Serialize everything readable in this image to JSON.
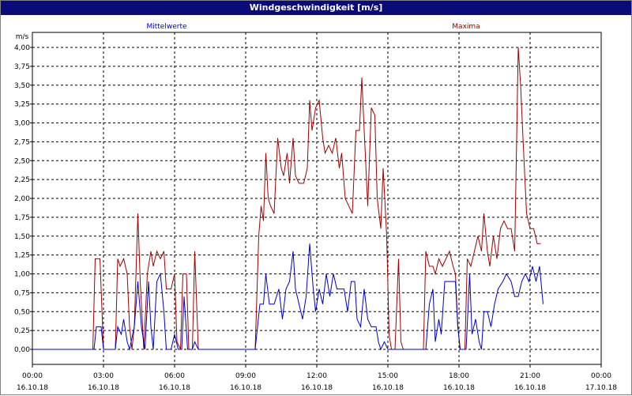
{
  "window": {
    "title": "Windgeschwindigkeit [m/s]"
  },
  "chart_data": {
    "type": "line",
    "title": "Windgeschwindigkeit [m/s]",
    "ylabel": "m/s",
    "ylim": [
      0,
      4.0
    ],
    "grid": true,
    "yticks": [
      "0,00",
      "0,25",
      "0,50",
      "0,75",
      "1,00",
      "1,25",
      "1,50",
      "1,75",
      "2,00",
      "2,25",
      "2,50",
      "2,75",
      "3,00",
      "3,25",
      "3,50",
      "3,75",
      "4,00"
    ],
    "xticks": [
      {
        "time": "00:00",
        "date": "16.10.18"
      },
      {
        "time": "03:00",
        "date": "16.10.18"
      },
      {
        "time": "06:00",
        "date": "16.10.18"
      },
      {
        "time": "09:00",
        "date": "16.10.18"
      },
      {
        "time": "12:00",
        "date": "16.10.18"
      },
      {
        "time": "15:00",
        "date": "16.10.18"
      },
      {
        "time": "18:00",
        "date": "16.10.18"
      },
      {
        "time": "21:00",
        "date": "16.10.18"
      },
      {
        "time": "00:00",
        "date": "17.10.18"
      }
    ],
    "series": [
      {
        "name": "Mittelwerte",
        "color": "#0000c8",
        "points": [
          [
            0,
            0
          ],
          [
            2.6,
            0
          ],
          [
            2.7,
            0.3
          ],
          [
            2.9,
            0.3
          ],
          [
            3.0,
            0
          ],
          [
            3.5,
            0
          ],
          [
            3.6,
            0.3
          ],
          [
            3.75,
            0.2
          ],
          [
            3.85,
            0.4
          ],
          [
            4.0,
            0.1
          ],
          [
            4.1,
            0
          ],
          [
            4.3,
            0.3
          ],
          [
            4.45,
            0.9
          ],
          [
            4.6,
            0.3
          ],
          [
            4.75,
            0
          ],
          [
            4.9,
            0.9
          ],
          [
            5.0,
            0.3
          ],
          [
            5.1,
            0
          ],
          [
            5.25,
            0.9
          ],
          [
            5.4,
            1.0
          ],
          [
            5.55,
            0.5
          ],
          [
            5.65,
            0
          ],
          [
            5.85,
            0
          ],
          [
            6.0,
            0.2
          ],
          [
            6.15,
            0
          ],
          [
            6.3,
            0
          ],
          [
            6.4,
            0.7
          ],
          [
            6.55,
            0
          ],
          [
            6.75,
            0
          ],
          [
            6.85,
            0.1
          ],
          [
            7.0,
            0
          ],
          [
            9.4,
            0
          ],
          [
            9.5,
            0.3
          ],
          [
            9.6,
            0.6
          ],
          [
            9.75,
            0.6
          ],
          [
            9.85,
            1.0
          ],
          [
            10.0,
            0.6
          ],
          [
            10.2,
            0.6
          ],
          [
            10.4,
            0.8
          ],
          [
            10.55,
            0.4
          ],
          [
            10.7,
            0.8
          ],
          [
            10.85,
            0.9
          ],
          [
            11.0,
            1.3
          ],
          [
            11.1,
            0.8
          ],
          [
            11.25,
            0.6
          ],
          [
            11.4,
            0.4
          ],
          [
            11.55,
            0.7
          ],
          [
            11.7,
            1.4
          ],
          [
            11.85,
            0.8
          ],
          [
            11.95,
            0.5
          ],
          [
            12.1,
            0.8
          ],
          [
            12.25,
            0.6
          ],
          [
            12.4,
            1.0
          ],
          [
            12.55,
            0.7
          ],
          [
            12.7,
            1.0
          ],
          [
            12.85,
            0.8
          ],
          [
            13.0,
            0.8
          ],
          [
            13.15,
            0.8
          ],
          [
            13.3,
            0.5
          ],
          [
            13.45,
            0.9
          ],
          [
            13.6,
            0.9
          ],
          [
            13.7,
            0.4
          ],
          [
            13.85,
            0.3
          ],
          [
            14.0,
            0.8
          ],
          [
            14.15,
            0.4
          ],
          [
            14.3,
            0.3
          ],
          [
            14.5,
            0.3
          ],
          [
            14.6,
            0.1
          ],
          [
            14.7,
            0
          ],
          [
            14.85,
            0.1
          ],
          [
            15.0,
            0
          ],
          [
            16.6,
            0
          ],
          [
            16.75,
            0.6
          ],
          [
            16.9,
            0.8
          ],
          [
            17.0,
            0.1
          ],
          [
            17.15,
            0.4
          ],
          [
            17.25,
            0.2
          ],
          [
            17.4,
            0.9
          ],
          [
            17.55,
            0.9
          ],
          [
            17.7,
            0.9
          ],
          [
            17.85,
            0.9
          ],
          [
            17.95,
            0.3
          ],
          [
            18.05,
            0
          ],
          [
            18.3,
            0
          ],
          [
            18.45,
            1.0
          ],
          [
            18.55,
            0.2
          ],
          [
            18.7,
            0.4
          ],
          [
            18.85,
            0.1
          ],
          [
            18.95,
            0
          ],
          [
            19.05,
            0.5
          ],
          [
            19.2,
            0.5
          ],
          [
            19.35,
            0.3
          ],
          [
            19.5,
            0.6
          ],
          [
            19.65,
            0.8
          ],
          [
            19.85,
            0.9
          ],
          [
            20.0,
            1.0
          ],
          [
            20.2,
            0.9
          ],
          [
            20.35,
            0.7
          ],
          [
            20.5,
            0.7
          ],
          [
            20.65,
            0.9
          ],
          [
            20.8,
            1.0
          ],
          [
            20.95,
            0.9
          ],
          [
            21.1,
            1.1
          ],
          [
            21.25,
            0.9
          ],
          [
            21.4,
            1.1
          ],
          [
            21.55,
            0.6
          ]
        ]
      },
      {
        "name": "Maxima",
        "color": "#a00000",
        "points": [
          [
            0,
            0
          ],
          [
            2.55,
            0
          ],
          [
            2.65,
            1.2
          ],
          [
            2.85,
            1.2
          ],
          [
            3.0,
            0
          ],
          [
            3.5,
            0
          ],
          [
            3.6,
            1.2
          ],
          [
            3.7,
            1.1
          ],
          [
            3.85,
            1.2
          ],
          [
            4.0,
            1.0
          ],
          [
            4.1,
            0.3
          ],
          [
            4.2,
            0
          ],
          [
            4.3,
            0.3
          ],
          [
            4.45,
            1.8
          ],
          [
            4.55,
            0.9
          ],
          [
            4.7,
            0
          ],
          [
            4.85,
            1.0
          ],
          [
            5.0,
            1.3
          ],
          [
            5.1,
            1.1
          ],
          [
            5.25,
            1.3
          ],
          [
            5.4,
            1.2
          ],
          [
            5.55,
            1.3
          ],
          [
            5.65,
            0.8
          ],
          [
            5.85,
            0.8
          ],
          [
            6.0,
            1.0
          ],
          [
            6.1,
            0.1
          ],
          [
            6.25,
            0
          ],
          [
            6.35,
            1.0
          ],
          [
            6.5,
            1.0
          ],
          [
            6.6,
            0
          ],
          [
            6.75,
            0
          ],
          [
            6.85,
            1.3
          ],
          [
            7.0,
            0
          ],
          [
            9.4,
            0
          ],
          [
            9.55,
            1.5
          ],
          [
            9.65,
            1.9
          ],
          [
            9.75,
            1.7
          ],
          [
            9.85,
            2.6
          ],
          [
            9.95,
            2.0
          ],
          [
            10.05,
            1.9
          ],
          [
            10.2,
            1.8
          ],
          [
            10.35,
            2.8
          ],
          [
            10.5,
            2.4
          ],
          [
            10.6,
            2.3
          ],
          [
            10.75,
            2.6
          ],
          [
            10.85,
            2.2
          ],
          [
            11.0,
            2.8
          ],
          [
            11.1,
            2.3
          ],
          [
            11.25,
            2.2
          ],
          [
            11.45,
            2.2
          ],
          [
            11.6,
            2.4
          ],
          [
            11.7,
            3.3
          ],
          [
            11.8,
            2.9
          ],
          [
            11.95,
            3.2
          ],
          [
            12.1,
            3.3
          ],
          [
            12.25,
            2.8
          ],
          [
            12.35,
            2.6
          ],
          [
            12.5,
            2.7
          ],
          [
            12.65,
            2.6
          ],
          [
            12.8,
            2.8
          ],
          [
            12.95,
            2.4
          ],
          [
            13.05,
            2.6
          ],
          [
            13.2,
            2.0
          ],
          [
            13.35,
            1.9
          ],
          [
            13.5,
            1.8
          ],
          [
            13.65,
            2.9
          ],
          [
            13.8,
            2.9
          ],
          [
            13.9,
            3.6
          ],
          [
            14.0,
            2.9
          ],
          [
            14.15,
            1.9
          ],
          [
            14.3,
            3.2
          ],
          [
            14.45,
            3.1
          ],
          [
            14.55,
            2.0
          ],
          [
            14.7,
            1.6
          ],
          [
            14.8,
            2.4
          ],
          [
            14.95,
            1.5
          ],
          [
            15.05,
            0.2
          ],
          [
            15.15,
            0
          ],
          [
            15.3,
            0
          ],
          [
            15.45,
            1.2
          ],
          [
            15.55,
            0.1
          ],
          [
            15.65,
            0
          ],
          [
            16.5,
            0
          ],
          [
            16.6,
            1.3
          ],
          [
            16.75,
            1.1
          ],
          [
            16.9,
            1.1
          ],
          [
            17.0,
            1.0
          ],
          [
            17.15,
            1.2
          ],
          [
            17.3,
            1.1
          ],
          [
            17.45,
            1.2
          ],
          [
            17.6,
            1.3
          ],
          [
            17.75,
            1.1
          ],
          [
            17.85,
            1.0
          ],
          [
            17.95,
            0.3
          ],
          [
            18.05,
            0
          ],
          [
            18.25,
            0
          ],
          [
            18.35,
            1.2
          ],
          [
            18.5,
            1.1
          ],
          [
            18.65,
            1.3
          ],
          [
            18.8,
            1.5
          ],
          [
            18.95,
            1.3
          ],
          [
            19.05,
            1.8
          ],
          [
            19.2,
            1.3
          ],
          [
            19.3,
            1.1
          ],
          [
            19.45,
            1.5
          ],
          [
            19.6,
            1.2
          ],
          [
            19.75,
            1.6
          ],
          [
            19.9,
            1.7
          ],
          [
            20.05,
            1.6
          ],
          [
            20.2,
            1.6
          ],
          [
            20.35,
            1.3
          ],
          [
            20.5,
            4.0
          ],
          [
            20.6,
            3.5
          ],
          [
            20.7,
            2.8
          ],
          [
            20.85,
            1.8
          ],
          [
            21.0,
            1.6
          ],
          [
            21.15,
            1.6
          ],
          [
            21.3,
            1.4
          ],
          [
            21.45,
            1.4
          ]
        ]
      }
    ]
  }
}
